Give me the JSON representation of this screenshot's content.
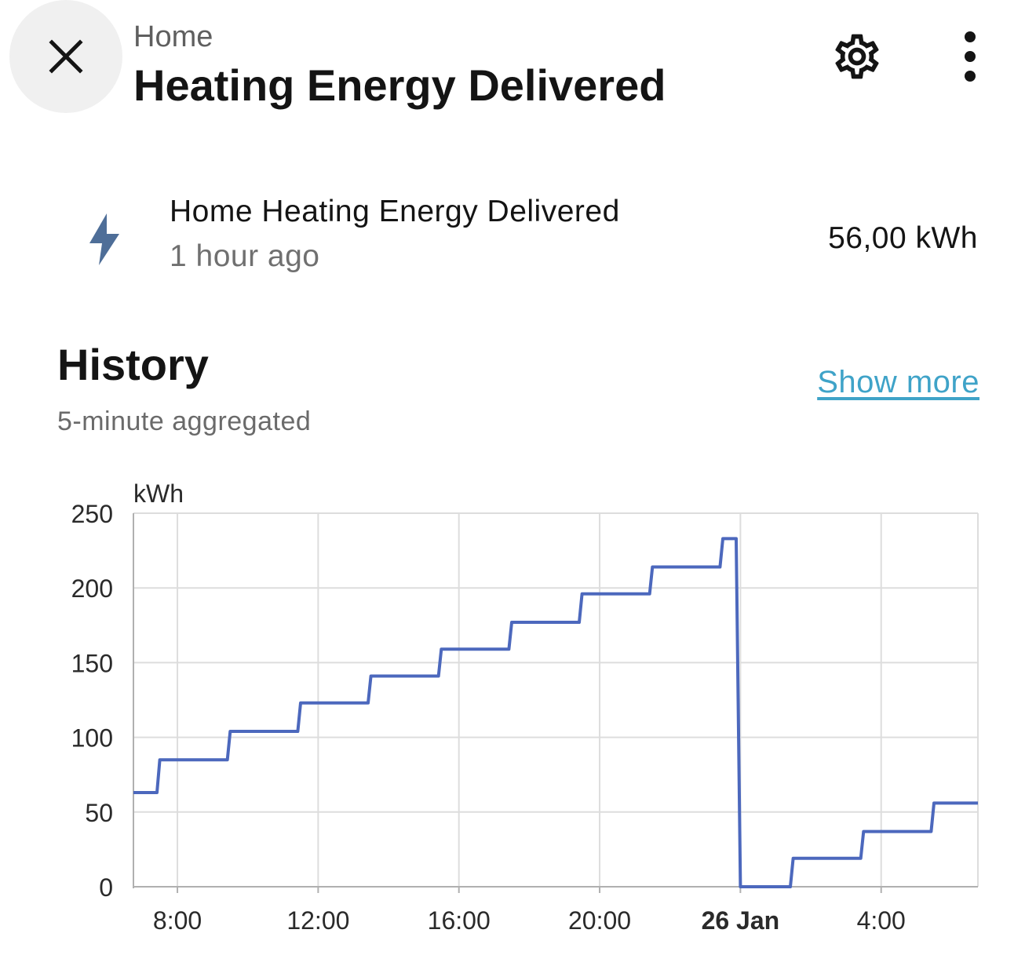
{
  "header": {
    "breadcrumb": "Home",
    "title": "Heating Energy Delivered",
    "icons": {
      "close": "close-icon",
      "settings": "gear-icon",
      "more": "more-vertical-icon"
    }
  },
  "entity": {
    "icon": "lightning-bolt-icon",
    "name": "Home Heating Energy Delivered",
    "last_changed": "1 hour ago",
    "state": "56,00 kWh",
    "icon_color": "#4e6e98"
  },
  "history": {
    "title": "History",
    "subtitle": "5-minute aggregated",
    "show_more": "Show more",
    "link_color": "#3fa3c8"
  },
  "chart_data": {
    "type": "line",
    "step": true,
    "ylabel": "kWh",
    "ylim": [
      0,
      250
    ],
    "yticks": [
      0,
      50,
      100,
      150,
      200,
      250
    ],
    "xlim": [
      6.75,
      30.75
    ],
    "xticks": [
      {
        "value": 8,
        "label": "8:00",
        "bold": false
      },
      {
        "value": 12,
        "label": "12:00",
        "bold": false
      },
      {
        "value": 16,
        "label": "16:00",
        "bold": false
      },
      {
        "value": 20,
        "label": "20:00",
        "bold": false
      },
      {
        "value": 24,
        "label": "26 Jan",
        "bold": true
      },
      {
        "value": 28,
        "label": "4:00",
        "bold": false
      }
    ],
    "grid": true,
    "line_color": "#4c68bd",
    "series": [
      {
        "x": [
          6.75,
          7.42,
          7.5,
          9.42,
          9.5,
          11.42,
          11.5,
          13.42,
          13.5,
          15.42,
          15.5,
          17.42,
          17.5,
          19.42,
          19.5,
          21.42,
          21.5,
          23.42,
          23.5,
          23.88,
          24.0,
          25.42,
          25.5,
          27.42,
          27.5,
          29.42,
          29.5,
          30.75
        ],
        "y": [
          63,
          63,
          85,
          85,
          104,
          104,
          123,
          123,
          141,
          141,
          159,
          159,
          177,
          177,
          196,
          196,
          214,
          214,
          233,
          233,
          0,
          0,
          19,
          19,
          37,
          37,
          56,
          56
        ]
      }
    ]
  }
}
